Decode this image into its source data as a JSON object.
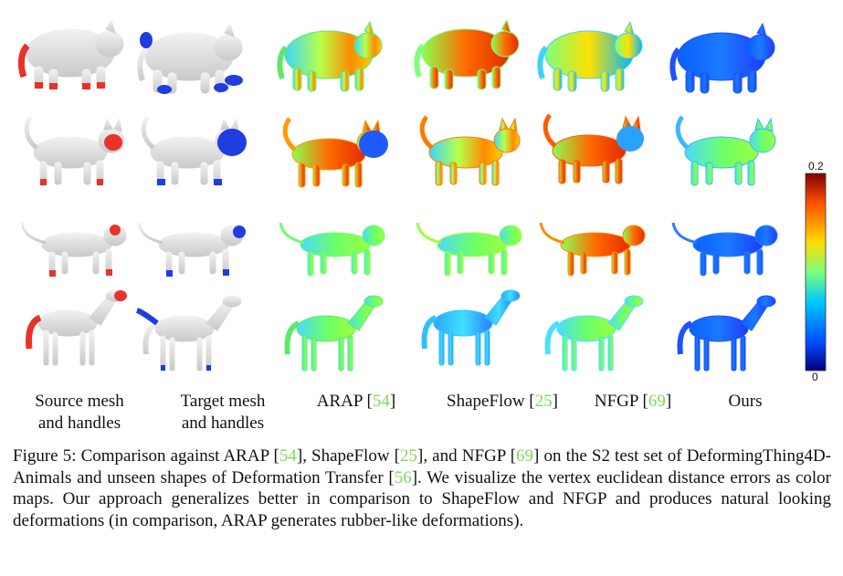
{
  "columns": [
    {
      "line1": "Source mesh",
      "line2": "and handles",
      "ref": ""
    },
    {
      "line1": "Target mesh",
      "line2": "and handles",
      "ref": ""
    },
    {
      "line1": "ARAP [",
      "ref": "54",
      "close": "]"
    },
    {
      "line1": "ShapeFlow [",
      "ref": "25",
      "close": "]"
    },
    {
      "line1": "NFGP [",
      "ref": "69",
      "close": "]"
    },
    {
      "line1": "Ours",
      "ref": ""
    }
  ],
  "rows": [
    "pig",
    "cat",
    "lion",
    "horse"
  ],
  "colorbar": {
    "max": "0.2",
    "min": "0",
    "colors": [
      "#00007f",
      "#0050ff",
      "#00c8ff",
      "#7dff7d",
      "#ffdc00",
      "#ff5000",
      "#800000"
    ]
  },
  "colors": {
    "mesh": "#e6e6e6",
    "source_handle": "#e8322a",
    "target_handle": "#1f3de0",
    "ref_link": "#7ed957"
  },
  "caption": {
    "p1": "Figure 5: Comparison against ARAP [",
    "r1": "54",
    "p2": "], ShapeFlow [",
    "r2": "25",
    "p3": "], and NFGP [",
    "r3": "69",
    "p4": "] on the S2 test set of DeformingThing4D-Animals and unseen shapes of Deformation Transfer [",
    "r4": "56",
    "p5": "]. We visualize the vertex euclidean distance errors as color maps. Our approach generalizes better in comparison to ShapeFlow and NFGP and produces natural looking deformations (in comparison, ARAP generates rubber-like deformations)."
  }
}
